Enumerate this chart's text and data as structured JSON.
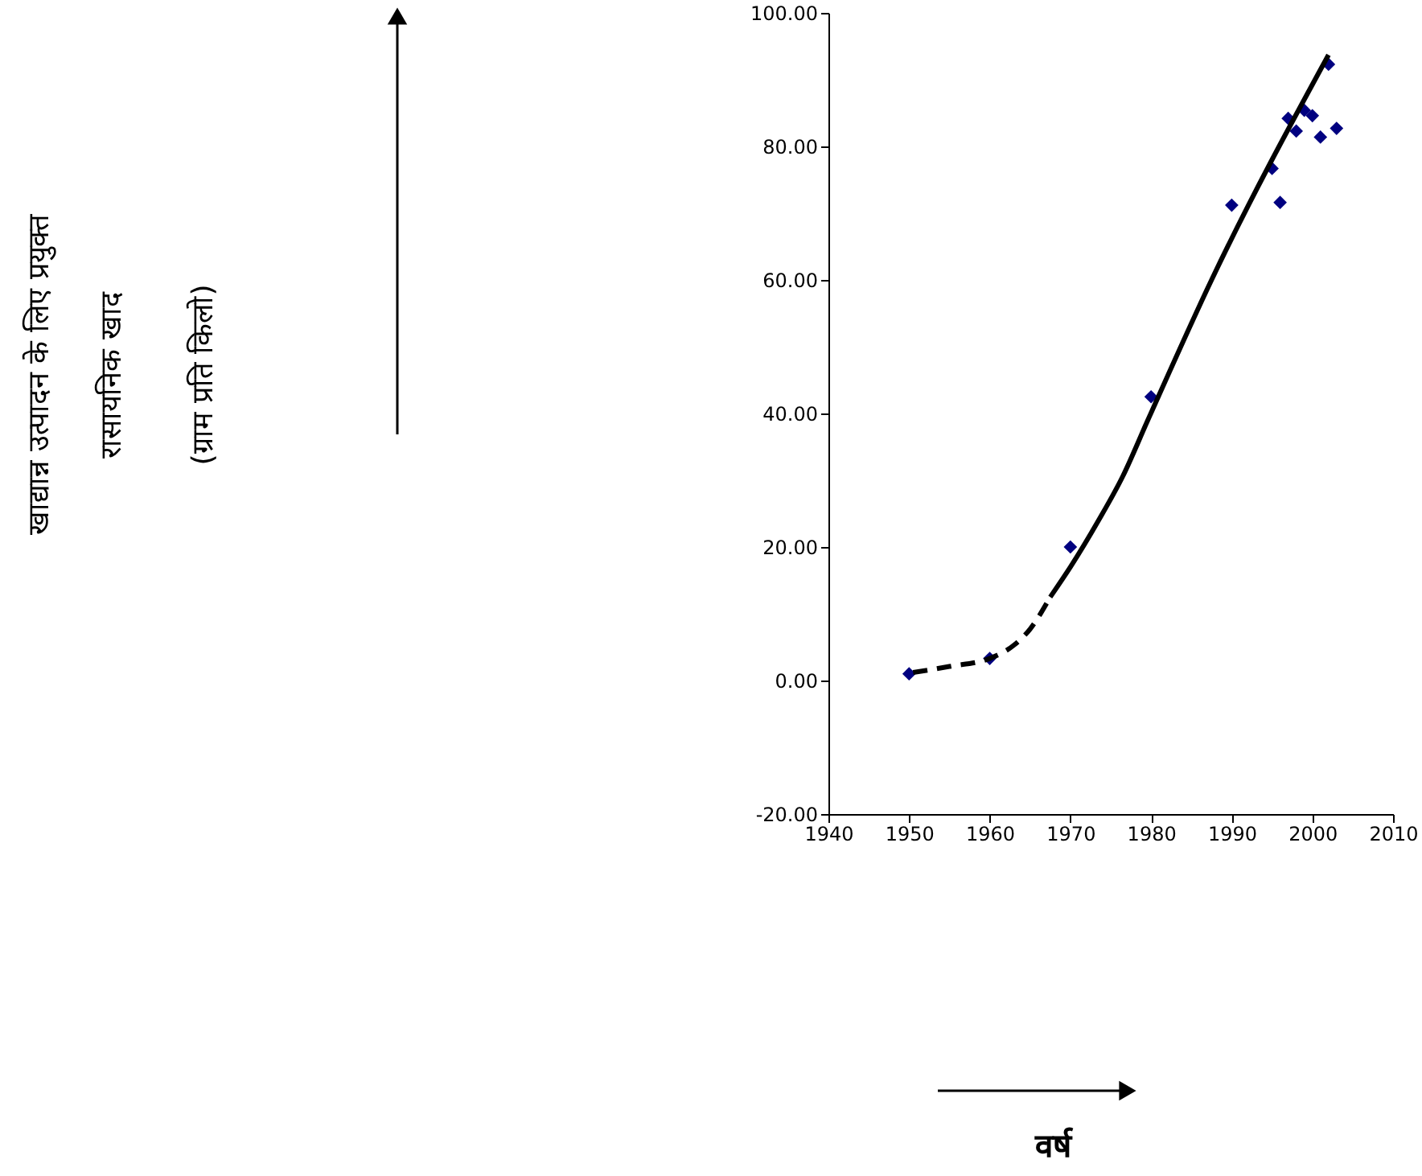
{
  "chart_data": {
    "type": "scatter",
    "annotations": [
      "वर्ष"
    ],
    "ylabel": "खाद्यान्न उत्पादन के लिए प्रयुक्त\nरासायनिक खाद\n(ग्राम प्रति किलो)",
    "xlim": [
      1940,
      2010
    ],
    "xticks": [
      1940,
      1950,
      1960,
      1970,
      1980,
      1990,
      2000,
      2010
    ],
    "ylim": [
      -20,
      100
    ],
    "yticks": [
      {
        "value": -20,
        "label": "-20.00"
      },
      {
        "value": 0,
        "label": "0.00"
      },
      {
        "value": 20,
        "label": "20.00"
      },
      {
        "value": 40,
        "label": "40.00"
      },
      {
        "value": 60,
        "label": "60.00"
      },
      {
        "value": 80,
        "label": "80.00"
      },
      {
        "value": 100,
        "label": "100.00"
      }
    ],
    "grid": false,
    "series": [
      {
        "color": "#000080",
        "marker": "diamond",
        "x": [
          1950,
          1960,
          1970,
          1980,
          1990,
          1995,
          1996,
          1997,
          1998,
          1999,
          2000,
          2001,
          2002,
          2003
        ],
        "values": [
          1.0,
          3.3,
          20.0,
          42.5,
          71.2,
          76.7,
          71.6,
          84.2,
          82.3,
          85.4,
          84.6,
          81.4,
          92.3,
          82.7
        ]
      },
      {
        "type": "line",
        "color": "#000000",
        "line_style": "dashed",
        "x": [
          1950.5,
          1955,
          1960,
          1963,
          1965,
          1967.5
        ],
        "values": [
          1.2,
          2.1,
          3.3,
          5.3,
          7.7,
          12.5
        ]
      },
      {
        "type": "line",
        "color": "#000000",
        "line_style": "solid",
        "x": [
          1967.5,
          1970,
          1973.5,
          1976.5,
          1979.6,
          1987.5,
          2002
        ],
        "values": [
          12.5,
          17,
          24,
          30.6,
          39,
          60,
          93.7
        ]
      }
    ]
  }
}
